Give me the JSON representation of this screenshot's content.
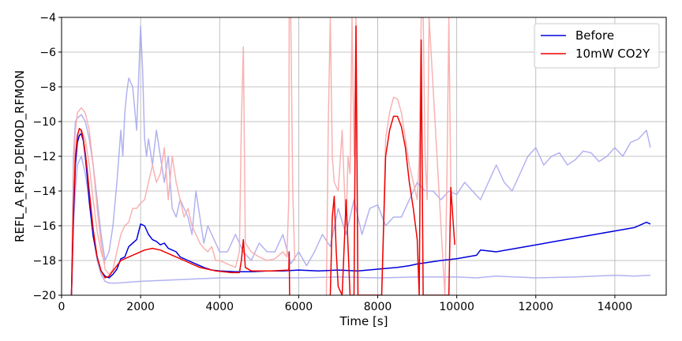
{
  "chart_data": {
    "type": "line",
    "title": "",
    "xlabel": "Time [s]",
    "ylabel": "REFL_A_RF9_DEMOD_RFMON",
    "xlim": [
      0,
      15300
    ],
    "ylim": [
      -20,
      -4
    ],
    "xticks": [
      0,
      2000,
      4000,
      6000,
      8000,
      10000,
      12000,
      14000
    ],
    "yticks": [
      -20,
      -18,
      -16,
      -14,
      -12,
      -10,
      -8,
      -6,
      -4
    ],
    "grid": true,
    "legend_position": "top-right",
    "series": [
      {
        "name": "Before",
        "color": "#0000dd",
        "role": "mean",
        "x": [
          250,
          300,
          350,
          400,
          450,
          500,
          550,
          600,
          650,
          700,
          800,
          900,
          1000,
          1100,
          1200,
          1300,
          1400,
          1500,
          1600,
          1700,
          1800,
          1900,
          2000,
          2100,
          2200,
          2300,
          2400,
          2500,
          2600,
          2700,
          2800,
          2900,
          3000,
          3200,
          3400,
          3600,
          3800,
          4000,
          4400,
          4800,
          5200,
          5600,
          6000,
          6500,
          7000,
          7500,
          8000,
          8500,
          8800,
          9000,
          9300,
          9600,
          10000,
          10500,
          10600,
          11000,
          11500,
          12000,
          12500,
          13000,
          13500,
          14000,
          14500,
          14700,
          14800,
          14900
        ],
        "y": [
          -20,
          -15.5,
          -12.5,
          -11.2,
          -10.8,
          -10.7,
          -11.1,
          -12,
          -13.2,
          -14.6,
          -16.6,
          -17.8,
          -18.6,
          -18.9,
          -19.0,
          -18.8,
          -18.5,
          -17.9,
          -17.8,
          -17.2,
          -17.0,
          -16.8,
          -15.9,
          -16.0,
          -16.5,
          -16.8,
          -16.9,
          -17.1,
          -17.0,
          -17.3,
          -17.4,
          -17.5,
          -17.8,
          -18.0,
          -18.2,
          -18.4,
          -18.55,
          -18.6,
          -18.65,
          -18.65,
          -18.6,
          -18.6,
          -18.55,
          -18.6,
          -18.55,
          -18.6,
          -18.5,
          -18.4,
          -18.3,
          -18.2,
          -18.1,
          -18.0,
          -17.9,
          -17.7,
          -17.4,
          -17.5,
          -17.3,
          -17.1,
          -16.9,
          -16.7,
          -16.5,
          -16.3,
          -16.1,
          -15.9,
          -15.8,
          -15.9
        ]
      },
      {
        "name": "10mW CO2Y",
        "color": "#ee0000",
        "role": "mean",
        "x": [
          250,
          300,
          350,
          400,
          450,
          500,
          550,
          600,
          650,
          700,
          800,
          900,
          1000,
          1100,
          1200,
          1300,
          1400,
          1500,
          1700,
          1900,
          2100,
          2300,
          2500,
          2700,
          2900,
          3100,
          3300,
          3500,
          3700,
          3900,
          4100,
          4300,
          4500,
          4550,
          4600,
          4650,
          4800,
          5000,
          5300,
          5750,
          5760,
          5770,
          5780
        ],
        "y": [
          -20,
          -15,
          -12,
          -10.8,
          -10.4,
          -10.5,
          -11,
          -11.8,
          -12.8,
          -14,
          -16.2,
          -17.8,
          -18.6,
          -19.0,
          -18.9,
          -18.6,
          -18.3,
          -18.0,
          -17.8,
          -17.6,
          -17.4,
          -17.3,
          -17.4,
          -17.6,
          -17.8,
          -18.0,
          -18.2,
          -18.4,
          -18.5,
          -18.6,
          -18.65,
          -18.7,
          -18.7,
          -18.0,
          -16.8,
          -18.4,
          -18.6,
          -18.6,
          -18.6,
          -18.55,
          -17.5,
          -20,
          -20
        ]
      },
      {
        "name": "10mW CO2Y (late)",
        "color": "#ee0000",
        "role": "mean-late",
        "x": [
          6800,
          6850,
          6900,
          6950,
          7000,
          7100,
          7200,
          7300,
          7400,
          7450,
          7500,
          7550,
          7600,
          8100,
          8200,
          8300,
          8400,
          8500,
          8600,
          8700,
          8800,
          8900,
          9000,
          9050,
          9100,
          9150,
          9200,
          9700,
          9800,
          9850,
          9900,
          9950
        ],
        "y": [
          -20,
          -15.5,
          -14.3,
          -17.5,
          -19.5,
          -20,
          -14.5,
          -20,
          -20,
          -4.5,
          -20,
          -20,
          -20,
          -20,
          -12,
          -10.5,
          -9.7,
          -9.7,
          -10.3,
          -11.5,
          -13.5,
          -15,
          -16.8,
          -20,
          -5.3,
          -20,
          -20,
          -20,
          -20,
          -13.8,
          -15.5,
          -17.1
        ]
      },
      {
        "name": "Before (band)",
        "color": "#aaaaf0",
        "role": "band-upper",
        "x": [
          250,
          300,
          350,
          400,
          500,
          600,
          700,
          800,
          900,
          1000,
          1100,
          1200,
          1300,
          1400,
          1500,
          1550,
          1600,
          1650,
          1700,
          1800,
          1900,
          2000,
          2050,
          2100,
          2150,
          2200,
          2300,
          2400,
          2500,
          2600,
          2700,
          2800,
          2900,
          3000,
          3100,
          3200,
          3300,
          3400,
          3500,
          3600,
          3700,
          3800,
          3900,
          4000,
          4200,
          4400,
          4600,
          4800,
          5000,
          5200,
          5400,
          5600,
          5800,
          6000,
          6200,
          6400,
          6600,
          6800,
          7000,
          7200,
          7400,
          7600,
          7800,
          8000,
          8200,
          8400,
          8600,
          8800,
          9000,
          9200,
          9400,
          9600,
          9800,
          10000,
          10200,
          10400,
          10600,
          10800,
          11000,
          11200,
          11400,
          11600,
          11800,
          12000,
          12200,
          12400,
          12600,
          12800,
          13000,
          13200,
          13400,
          13600,
          13800,
          14000,
          14200,
          14400,
          14600,
          14800,
          14900
        ],
        "y": [
          -20,
          -12,
          -10,
          -9.8,
          -9.6,
          -10,
          -11,
          -12.5,
          -14.5,
          -16.5,
          -18,
          -17.5,
          -16,
          -13.5,
          -10.5,
          -12,
          -9.5,
          -8.3,
          -7.5,
          -8,
          -10.5,
          -4.5,
          -7,
          -11,
          -12,
          -11,
          -12.5,
          -10.5,
          -12,
          -13.5,
          -12,
          -15,
          -15.5,
          -14.5,
          -15,
          -15.5,
          -16.5,
          -14,
          -15.5,
          -17,
          -16,
          -16.5,
          -17,
          -17.5,
          -17.5,
          -16.5,
          -17.5,
          -18,
          -17,
          -17.5,
          -17.5,
          -16.5,
          -18.2,
          -17.5,
          -18.3,
          -17.5,
          -16.5,
          -17.2,
          -15,
          -16.5,
          -14.5,
          -16.5,
          -15,
          -14.8,
          -16,
          -15.5,
          -15.5,
          -14.5,
          -13.5,
          -14,
          -14,
          -14.5,
          -14,
          -14.2,
          -13.5,
          -14,
          -14.5,
          -13.5,
          -12.5,
          -13.5,
          -14,
          -13,
          -12,
          -11.5,
          -12.5,
          -12,
          -11.8,
          -12.5,
          -12.2,
          -11.7,
          -11.8,
          -12.3,
          -12,
          -11.5,
          -12,
          -11.2,
          -11,
          -10.5,
          -11.5
        ]
      },
      {
        "name": "Before (band low)",
        "color": "#aaaaf0",
        "role": "band-lower",
        "x": [
          250,
          300,
          350,
          400,
          500,
          600,
          700,
          800,
          900,
          1000,
          1100,
          1200,
          1400,
          2000,
          3000,
          4000,
          5000,
          6000,
          7000,
          8000,
          9000,
          10000,
          10500,
          11000,
          12000,
          13000,
          14000,
          14500,
          14900
        ],
        "y": [
          -20,
          -16,
          -14,
          -12.5,
          -12,
          -13,
          -14.5,
          -16.5,
          -18,
          -18.8,
          -19.2,
          -19.3,
          -19.3,
          -19.2,
          -19.1,
          -19.0,
          -19.0,
          -19.0,
          -18.95,
          -19.0,
          -18.95,
          -18.95,
          -19.0,
          -18.9,
          -19.0,
          -18.95,
          -18.85,
          -18.9,
          -18.85
        ]
      },
      {
        "name": "10mW CO2Y (band)",
        "color": "#f8aaaa",
        "role": "band-upper",
        "x": [
          250,
          300,
          350,
          400,
          500,
          600,
          700,
          800,
          900,
          1000,
          1100,
          1200,
          1300,
          1400,
          1500,
          1600,
          1700,
          1800,
          1900,
          2000,
          2100,
          2200,
          2300,
          2400,
          2500,
          2600,
          2700,
          2800,
          2900,
          3000,
          3100,
          3200,
          3300,
          3400,
          3500,
          3600,
          3700,
          3800,
          3900,
          4000,
          4200,
          4400,
          4500,
          4550,
          4600,
          4650,
          4800,
          5000,
          5200,
          5400,
          5600,
          5700,
          5750,
          5760,
          5800,
          5850,
          5900
        ],
        "y": [
          -20,
          -13,
          -10.5,
          -9.5,
          -9.2,
          -9.5,
          -10.5,
          -12.5,
          -15,
          -17,
          -18.5,
          -18.8,
          -18.5,
          -17.5,
          -16.5,
          -16,
          -15.8,
          -15,
          -15,
          -14.7,
          -14.5,
          -13.5,
          -12.5,
          -13.5,
          -13,
          -11.5,
          -14.5,
          -12,
          -13.5,
          -14.5,
          -15.5,
          -15,
          -16,
          -16.5,
          -17,
          -17.3,
          -17.5,
          -17.2,
          -18.0,
          -18.0,
          -18.2,
          -18.4,
          -17.5,
          -10,
          -5.7,
          -17,
          -17.5,
          -17.8,
          -18,
          -17.9,
          -17.5,
          -17.8,
          -14.5,
          -4,
          -4,
          -14,
          -18
        ]
      },
      {
        "name": "10mW CO2Y (band late)",
        "color": "#f8aaaa",
        "role": "band-late",
        "x": [
          6700,
          6750,
          6800,
          6850,
          6900,
          7000,
          7100,
          7150,
          7200,
          7250,
          7300,
          7350,
          7400,
          7450,
          7500,
          8100,
          8200,
          8300,
          8400,
          8500,
          8600,
          8700,
          8800,
          8900,
          9000,
          9050,
          9100,
          9150,
          9200,
          9250,
          9300,
          9700,
          9750,
          9800,
          9850
        ],
        "y": [
          -20,
          -10,
          -4,
          -12,
          -13.5,
          -14,
          -10.5,
          -13.5,
          -16,
          -12,
          -13,
          -4,
          -12,
          -4,
          -20,
          -20,
          -11,
          -9.5,
          -8.6,
          -8.7,
          -9.5,
          -11,
          -12.5,
          -13.5,
          -14.5,
          -12,
          -4,
          -4,
          -12,
          -14.5,
          -4,
          -20,
          -13.5,
          -4,
          -14
        ]
      },
      {
        "name": "10mW CO2Y (band low)",
        "color": "#f8aaaa",
        "role": "band-lower",
        "x": [
          250,
          300,
          350,
          400,
          500,
          600,
          700,
          800,
          900,
          1000,
          1100
        ],
        "y": [
          -20,
          -15.5,
          -12.5,
          -11,
          -10.5,
          -11,
          -12.5,
          -14.5,
          -16.3,
          -17.5,
          -18.2
        ]
      }
    ]
  }
}
